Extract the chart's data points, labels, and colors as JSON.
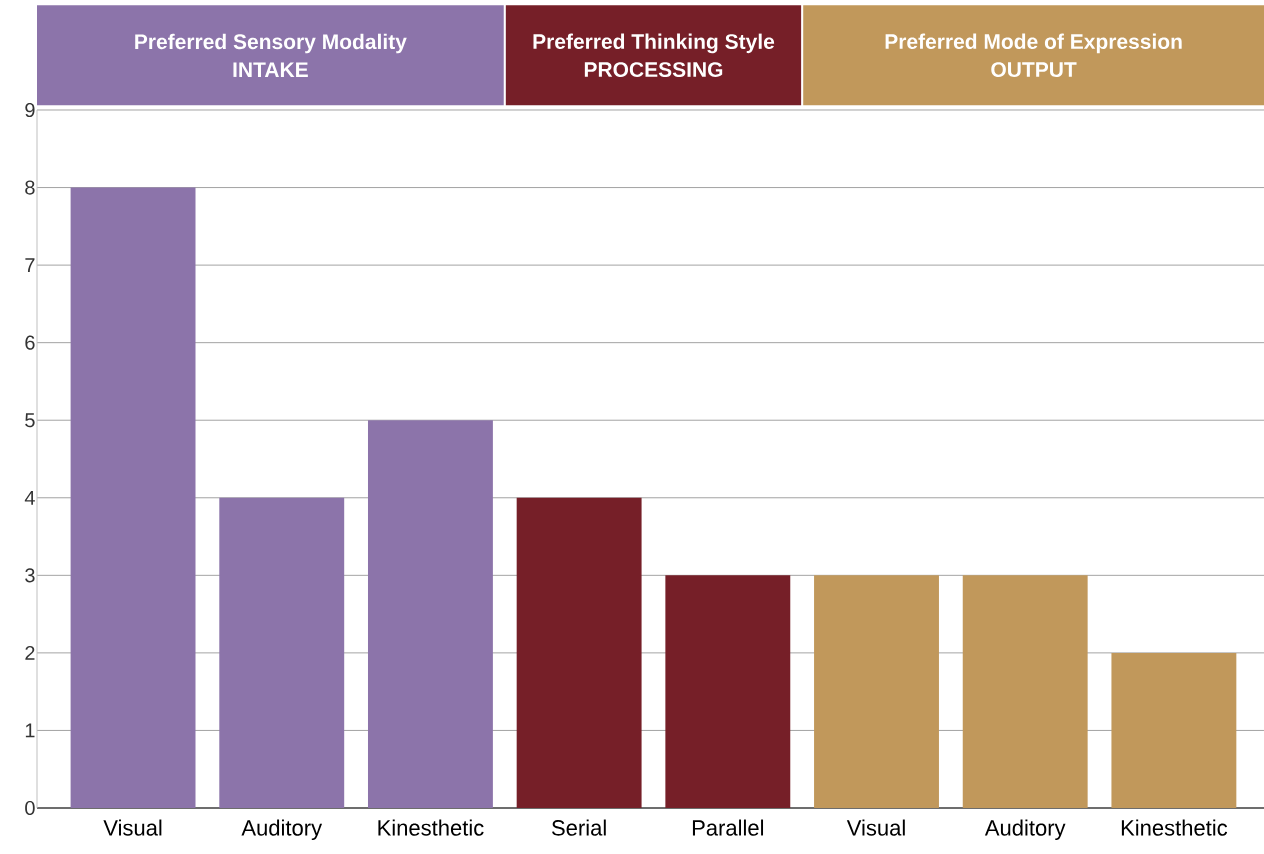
{
  "chart_data": {
    "type": "bar",
    "categories": [
      "Visual",
      "Auditory",
      "Kinesthetic",
      "Serial",
      "Parallel",
      "Visual",
      "Auditory",
      "Kinesthetic"
    ],
    "values": [
      8,
      4,
      5,
      4,
      3,
      3,
      3,
      2
    ],
    "colors": [
      "#8c74aa",
      "#8c74aa",
      "#8c74aa",
      "#761f28",
      "#761f28",
      "#c1985b",
      "#c1985b",
      "#c1985b"
    ],
    "ylim": [
      0,
      9
    ],
    "yticks": [
      0,
      1,
      2,
      3,
      4,
      5,
      6,
      7,
      8,
      9
    ],
    "grid": "y",
    "annotations": [
      "Preferred Sensory Modality",
      "INTAKE",
      "Preferred Thinking Style",
      "PROCESSING",
      "Preferred Mode of Expression",
      "OUTPUT"
    ]
  }
}
